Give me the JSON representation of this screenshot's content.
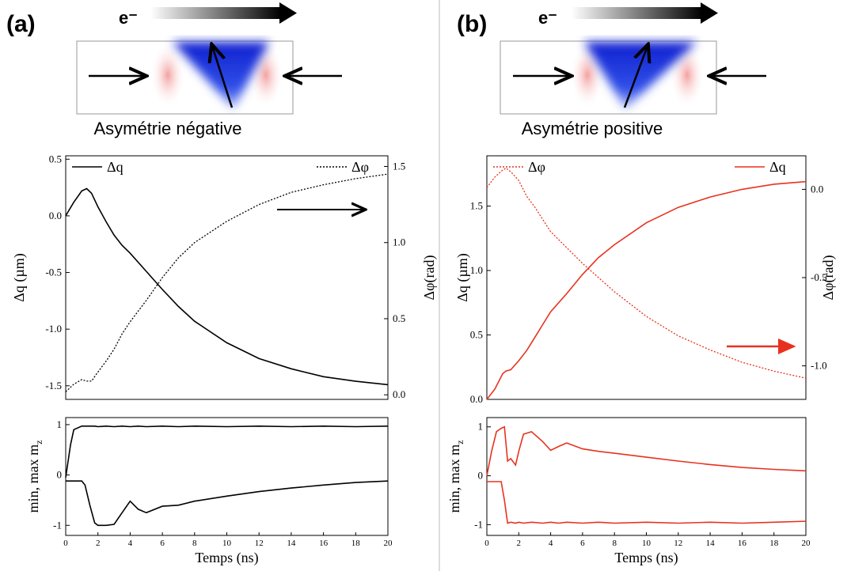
{
  "panels": [
    {
      "label": "(a)",
      "electron": "e⁻",
      "caption": "Asymétrie négative"
    },
    {
      "label": "(b)",
      "electron": "e⁻",
      "caption": "Asymétrie positive"
    }
  ],
  "chart_data": [
    {
      "type": "line",
      "ylabel": "Δq (µm)",
      "y2label": "Δφ(rad)",
      "xlim": [
        0,
        20
      ],
      "ylim": [
        -1.62,
        0.53
      ],
      "yticks": [
        -1.5,
        {
          "value": -1,
          "label": "-1.0"
        },
        -0.5,
        {
          "value": 0,
          "label": "0.0"
        },
        0.5
      ],
      "y2lim": [
        -0.03,
        1.57
      ],
      "y2ticks": [
        {
          "value": 0,
          "label": "0.0"
        },
        0.5,
        {
          "value": 1,
          "label": "1.0"
        },
        1.5
      ],
      "x": [
        0,
        0.5,
        1,
        1.3,
        1.6,
        2,
        2.5,
        3,
        3.5,
        4,
        5,
        6,
        7,
        8,
        10,
        12,
        14,
        16,
        18,
        20
      ],
      "series": [
        {
          "name": "Δq",
          "color": "#000000",
          "line_style": "solid",
          "values": [
            0,
            0.12,
            0.22,
            0.24,
            0.2,
            0.08,
            -0.05,
            -0.17,
            -0.26,
            -0.33,
            -0.49,
            -0.65,
            -0.8,
            -0.93,
            -1.12,
            -1.26,
            -1.35,
            -1.42,
            -1.46,
            -1.49
          ]
        },
        {
          "name": "Δφ",
          "color": "#000000",
          "line_style": "dotted",
          "axis": "y2",
          "values": [
            0.02,
            0.07,
            0.1,
            0.09,
            0.09,
            0.15,
            0.22,
            0.3,
            0.4,
            0.48,
            0.62,
            0.77,
            0.9,
            1.0,
            1.14,
            1.25,
            1.33,
            1.38,
            1.42,
            1.45
          ]
        }
      ]
    },
    {
      "type": "line",
      "ylabel": {
        "text": "min, max m",
        "subscript": "z"
      },
      "xlabel": "Temps (ns)",
      "xlim": [
        0,
        20
      ],
      "xticks": [
        0,
        2,
        4,
        6,
        8,
        10,
        12,
        14,
        16,
        18,
        20
      ],
      "ylim": [
        -1.2,
        1.14
      ],
      "yticks": [
        -1,
        0,
        1
      ],
      "x": [
        0,
        0.3,
        0.5,
        1,
        1.2,
        1.5,
        1.8,
        2,
        2.5,
        3,
        3.5,
        4,
        4.5,
        5,
        6,
        7,
        8,
        10,
        12,
        14,
        16,
        18,
        20
      ],
      "series": [
        {
          "color": "#000000",
          "line_style": "solid",
          "values": [
            -0.05,
            0.6,
            0.9,
            0.97,
            0.97,
            0.97,
            0.97,
            0.96,
            0.97,
            0.96,
            0.97,
            0.96,
            0.97,
            0.96,
            0.97,
            0.96,
            0.97,
            0.96,
            0.97,
            0.96,
            0.97,
            0.96,
            0.97
          ]
        },
        {
          "color": "#000000",
          "line_style": "solid",
          "values": [
            -0.12,
            -0.12,
            -0.12,
            -0.12,
            -0.2,
            -0.6,
            -0.95,
            -1.0,
            -1.0,
            -0.98,
            -0.75,
            -0.52,
            -0.68,
            -0.75,
            -0.62,
            -0.6,
            -0.52,
            -0.42,
            -0.33,
            -0.26,
            -0.2,
            -0.15,
            -0.12
          ]
        }
      ]
    },
    {
      "type": "line",
      "ylabel": "Δq (µm)",
      "y2label": "Δφ(rad)",
      "xlim": [
        0,
        20
      ],
      "ylim": [
        0,
        1.89
      ],
      "yticks": [
        {
          "value": 0,
          "label": "0.0"
        },
        0.5,
        {
          "value": 1,
          "label": "1.0"
        },
        1.5
      ],
      "y2lim": [
        -1.19,
        0.19
      ],
      "y2ticks": [
        {
          "value": -1,
          "label": "-1.0"
        },
        -0.5,
        {
          "value": 0,
          "label": "0.0"
        }
      ],
      "x": [
        0,
        0.5,
        1,
        1.2,
        1.5,
        2,
        2.5,
        3,
        3.5,
        4,
        5,
        6,
        7,
        8,
        10,
        12,
        14,
        16,
        18,
        20
      ],
      "series": [
        {
          "name": "Δφ",
          "color": "#e8321e",
          "line_style": "dotted",
          "axis": "y2",
          "values": [
            0.01,
            0.07,
            0.11,
            0.12,
            0.1,
            0.05,
            -0.04,
            -0.1,
            -0.17,
            -0.24,
            -0.33,
            -0.42,
            -0.5,
            -0.58,
            -0.72,
            -0.83,
            -0.91,
            -0.98,
            -1.03,
            -1.07
          ]
        },
        {
          "name": "Δq",
          "color": "#e8321e",
          "line_style": "solid",
          "values": [
            0,
            0.08,
            0.2,
            0.22,
            0.23,
            0.3,
            0.38,
            0.48,
            0.58,
            0.68,
            0.82,
            0.97,
            1.1,
            1.2,
            1.37,
            1.49,
            1.57,
            1.63,
            1.67,
            1.69
          ]
        }
      ]
    },
    {
      "type": "line",
      "ylabel": {
        "text": "min, max m",
        "subscript": "z"
      },
      "xlabel": "Temps (ns)",
      "xlim": [
        0,
        20
      ],
      "xticks": [
        0,
        2,
        4,
        6,
        8,
        10,
        12,
        14,
        16,
        18,
        20
      ],
      "ylim": [
        -1.22,
        1.19
      ],
      "yticks": [
        -1,
        0,
        1
      ],
      "x": [
        0,
        0.3,
        0.6,
        0.9,
        1.1,
        1.3,
        1.5,
        1.8,
        2,
        2.3,
        2.8,
        3.5,
        4,
        4.5,
        5,
        6,
        7,
        8,
        10,
        12,
        14,
        16,
        18,
        20
      ],
      "series": [
        {
          "color": "#e8321e",
          "line_style": "solid",
          "values": [
            0,
            0.5,
            0.9,
            0.97,
            1.0,
            0.3,
            0.35,
            0.22,
            0.5,
            0.85,
            0.9,
            0.7,
            0.52,
            0.6,
            0.67,
            0.55,
            0.5,
            0.46,
            0.38,
            0.3,
            0.23,
            0.17,
            0.13,
            0.1
          ]
        },
        {
          "color": "#e8321e",
          "line_style": "solid",
          "values": [
            -0.12,
            -0.12,
            -0.12,
            -0.12,
            -0.5,
            -0.97,
            -0.95,
            -0.97,
            -0.95,
            -0.97,
            -0.95,
            -0.97,
            -0.95,
            -0.97,
            -0.95,
            -0.97,
            -0.95,
            -0.97,
            -0.95,
            -0.97,
            -0.95,
            -0.97,
            -0.95,
            -0.93
          ]
        }
      ]
    }
  ]
}
